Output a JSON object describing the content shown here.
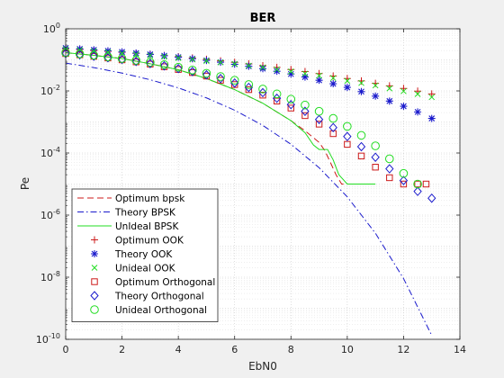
{
  "chart_data": {
    "type": "line",
    "title": "BER",
    "xlabel": "EbN0",
    "ylabel": "Pe",
    "xlim": [
      0,
      14
    ],
    "ylim": [
      1e-10,
      1
    ],
    "yscale": "log",
    "grid": "on (major + minor, dotted)",
    "legend_position": "bottom-left",
    "x_ticks": [
      0,
      2,
      4,
      6,
      8,
      10,
      12,
      14
    ],
    "x_tick_labels": [
      "0",
      "2",
      "4",
      "6",
      "8",
      "10",
      "12",
      "14"
    ],
    "y_ticks": [
      {
        "value": 1.0,
        "base": "10",
        "exp": "0"
      },
      {
        "value": 0.01,
        "base": "10",
        "exp": "-2"
      },
      {
        "value": 0.0001,
        "base": "10",
        "exp": "-4"
      },
      {
        "value": 1e-06,
        "base": "10",
        "exp": "-6"
      },
      {
        "value": 1e-08,
        "base": "10",
        "exp": "-8"
      },
      {
        "value": 1e-10,
        "base": "10",
        "exp": "-10"
      }
    ],
    "series": [
      {
        "name": "Optimum bpsk",
        "style": "dashed",
        "marker": "none",
        "color": "#cc1a1a",
        "x": [
          0,
          1,
          2,
          3,
          4,
          5,
          6,
          7,
          8,
          8.5,
          9,
          9.2,
          9.4,
          9.6,
          9.8,
          10,
          10.5,
          11
        ],
        "y": [
          0.17,
          0.14,
          0.11,
          0.075,
          0.048,
          0.025,
          0.011,
          0.004,
          0.0011,
          0.00052,
          0.00022,
          0.00012,
          5e-05,
          2e-05,
          1e-05,
          1e-05,
          1e-05,
          1e-05
        ]
      },
      {
        "name": "Theory BPSK",
        "style": "dashdot",
        "marker": "none",
        "color": "#1a1acc",
        "x": [
          0,
          1,
          2,
          3,
          4,
          5,
          6,
          7,
          8,
          9,
          10,
          11,
          12,
          13
        ],
        "y": [
          0.0786,
          0.0563,
          0.0375,
          0.0229,
          0.0125,
          0.00596,
          0.00239,
          0.000773,
          0.000191,
          3.36e-05,
          3.87e-06,
          2.61e-07,
          9.01e-09,
          1.33e-10
        ]
      },
      {
        "name": "UnIdeal BPSK",
        "style": "solid",
        "marker": "none",
        "color": "#22dd22",
        "x": [
          0,
          1,
          2,
          3,
          4,
          5,
          6,
          7,
          8,
          8.5,
          8.8,
          9,
          9.3,
          9.5,
          9.7,
          10,
          10.5,
          11
        ],
        "y": [
          0.17,
          0.14,
          0.11,
          0.075,
          0.048,
          0.025,
          0.011,
          0.004,
          0.0011,
          0.00045,
          0.00018,
          0.00013,
          0.00013,
          6e-05,
          2e-05,
          1e-05,
          1e-05,
          1e-05
        ]
      },
      {
        "name": "Optimum OOK",
        "style": "none",
        "marker": "plus",
        "color": "#cc1a1a",
        "x": [
          0,
          0.5,
          1,
          1.5,
          2,
          2.5,
          3,
          3.5,
          4,
          4.5,
          5,
          5.5,
          6,
          6.5,
          7,
          7.5,
          8,
          8.5,
          9,
          9.5,
          10,
          10.5,
          11,
          11.5,
          12,
          12.5,
          13
        ],
        "y": [
          0.23,
          0.215,
          0.2,
          0.188,
          0.175,
          0.162,
          0.15,
          0.138,
          0.126,
          0.115,
          0.104,
          0.093,
          0.083,
          0.074,
          0.065,
          0.057,
          0.049,
          0.042,
          0.036,
          0.03,
          0.025,
          0.021,
          0.0175,
          0.0145,
          0.012,
          0.0098,
          0.008
        ]
      },
      {
        "name": "Theory OOK",
        "style": "none",
        "marker": "asterisk",
        "color": "#1a1acc",
        "x": [
          0,
          0.5,
          1,
          1.5,
          2,
          2.5,
          3,
          3.5,
          4,
          4.5,
          5,
          5.5,
          6,
          6.5,
          7,
          7.5,
          8,
          8.5,
          9,
          9.5,
          10,
          10.5,
          11,
          11.5,
          12,
          12.5,
          13
        ],
        "y": [
          0.24,
          0.225,
          0.21,
          0.195,
          0.18,
          0.165,
          0.15,
          0.136,
          0.122,
          0.109,
          0.096,
          0.084,
          0.072,
          0.062,
          0.052,
          0.043,
          0.035,
          0.028,
          0.022,
          0.017,
          0.013,
          0.0095,
          0.0068,
          0.0047,
          0.0032,
          0.0021,
          0.0013
        ]
      },
      {
        "name": "Unideal OOK",
        "style": "none",
        "marker": "cross",
        "color": "#22dd22",
        "x": [
          0,
          0.5,
          1,
          1.5,
          2,
          2.5,
          3,
          3.5,
          4,
          4.5,
          5,
          5.5,
          6,
          6.5,
          7,
          7.5,
          8,
          8.5,
          9,
          9.5,
          10,
          10.5,
          11,
          11.5,
          12,
          12.5,
          13
        ],
        "y": [
          0.22,
          0.205,
          0.19,
          0.176,
          0.163,
          0.15,
          0.138,
          0.126,
          0.114,
          0.103,
          0.093,
          0.083,
          0.074,
          0.065,
          0.057,
          0.049,
          0.042,
          0.036,
          0.031,
          0.026,
          0.021,
          0.018,
          0.015,
          0.012,
          0.0098,
          0.0079,
          0.0063
        ]
      },
      {
        "name": "Optimum Orthogonal",
        "style": "none",
        "marker": "square",
        "color": "#cc1a1a",
        "x": [
          0,
          0.5,
          1,
          1.5,
          2,
          2.5,
          3,
          3.5,
          4,
          4.5,
          5,
          5.5,
          6,
          6.5,
          7,
          7.5,
          8,
          8.5,
          9,
          9.5,
          10,
          10.5,
          11,
          11.5,
          12,
          12.5,
          12.8
        ],
        "y": [
          0.16,
          0.145,
          0.13,
          0.115,
          0.1,
          0.086,
          0.073,
          0.06,
          0.049,
          0.039,
          0.03,
          0.022,
          0.016,
          0.011,
          0.0073,
          0.0047,
          0.0028,
          0.0016,
          0.00085,
          0.00042,
          0.00019,
          8e-05,
          3.5e-05,
          1.6e-05,
          1e-05,
          1e-05,
          1e-05
        ]
      },
      {
        "name": "Theory Orthogonal",
        "style": "none",
        "marker": "diamond",
        "color": "#1a1acc",
        "x": [
          0,
          0.5,
          1,
          1.5,
          2,
          2.5,
          3,
          3.5,
          4,
          4.5,
          5,
          5.5,
          6,
          6.5,
          7,
          7.5,
          8,
          8.5,
          9,
          9.5,
          10,
          10.5,
          11,
          11.5,
          12,
          12.5,
          13
        ],
        "y": [
          0.16,
          0.146,
          0.131,
          0.117,
          0.103,
          0.089,
          0.076,
          0.064,
          0.052,
          0.042,
          0.033,
          0.025,
          0.018,
          0.013,
          0.0088,
          0.0058,
          0.0036,
          0.0022,
          0.0012,
          0.00066,
          0.00034,
          0.00016,
          7.3e-05,
          3.1e-05,
          1.3e-05,
          5.8e-06,
          3.5e-06
        ]
      },
      {
        "name": "Unideal Orthogonal",
        "style": "none",
        "marker": "circle",
        "color": "#22dd22",
        "x": [
          0,
          0.5,
          1,
          1.5,
          2,
          2.5,
          3,
          3.5,
          4,
          4.5,
          5,
          5.5,
          6,
          6.5,
          7,
          7.5,
          8,
          8.5,
          9,
          9.5,
          10,
          10.5,
          11,
          11.5,
          12,
          12.5
        ],
        "y": [
          0.17,
          0.155,
          0.14,
          0.125,
          0.11,
          0.096,
          0.083,
          0.07,
          0.058,
          0.047,
          0.037,
          0.029,
          0.022,
          0.016,
          0.0115,
          0.008,
          0.0054,
          0.0035,
          0.0022,
          0.0013,
          0.00072,
          0.00037,
          0.00017,
          6.5e-05,
          2.2e-05,
          1e-05
        ]
      }
    ]
  }
}
